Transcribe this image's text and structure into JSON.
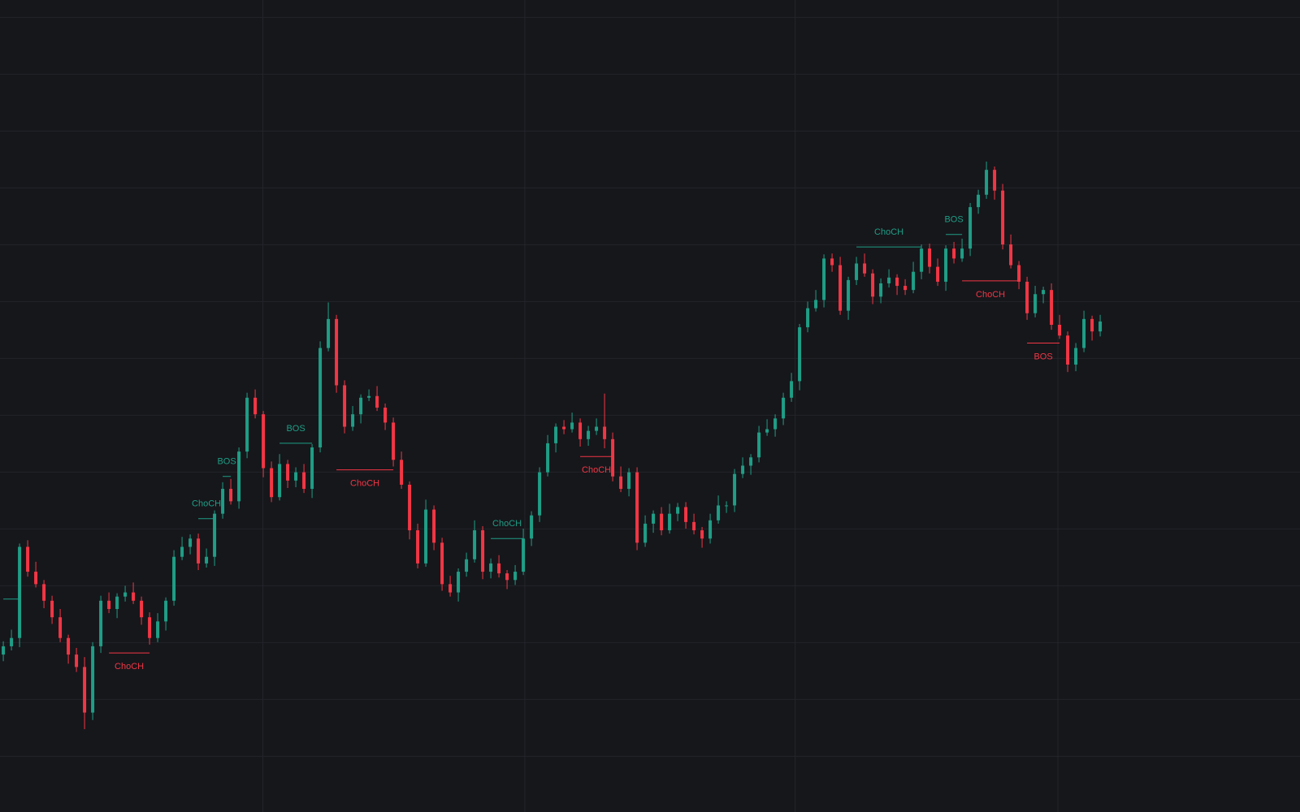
{
  "chart_data": {
    "type": "candlestick",
    "ylim": [
      0,
      980
    ],
    "grid": true,
    "up_color": "#1f9e86",
    "down_color": "#f23645",
    "open": [
      190,
      200,
      210,
      320,
      290,
      275,
      255,
      235,
      210,
      190,
      175,
      120,
      200,
      255,
      245,
      260,
      265,
      255,
      235,
      210,
      230,
      255,
      308,
      320,
      330,
      300,
      308,
      360,
      390,
      375,
      435,
      500,
      480,
      415,
      380,
      420,
      400,
      410,
      390,
      440,
      560,
      595,
      515,
      465,
      480,
      500,
      502,
      488,
      470,
      425,
      395,
      340,
      300,
      365,
      325,
      275,
      265,
      290,
      305,
      340,
      290,
      300,
      288,
      280,
      290,
      330,
      358,
      410,
      445,
      465,
      462,
      470,
      450,
      460,
      465,
      450,
      405,
      390,
      410,
      325,
      348,
      360,
      340,
      360,
      368,
      350,
      340,
      330,
      352,
      370,
      370,
      408,
      418,
      428,
      458,
      462,
      475,
      500,
      520,
      585,
      608,
      618,
      668,
      660,
      605,
      642,
      662,
      650,
      622,
      638,
      645,
      635,
      630,
      652,
      680,
      658,
      640,
      680,
      668,
      680,
      730,
      745,
      775,
      750,
      685,
      660,
      640,
      602,
      625,
      630,
      588,
      575,
      540,
      560,
      595,
      580
    ],
    "high": [
      206,
      220,
      324,
      328,
      302,
      280,
      261,
      245,
      214,
      198,
      187,
      205,
      261,
      265,
      264,
      273,
      277,
      260,
      241,
      240,
      259,
      316,
      332,
      335,
      336,
      318,
      364,
      398,
      402,
      440,
      506,
      510,
      484,
      423,
      432,
      425,
      416,
      420,
      444,
      568,
      615,
      600,
      521,
      490,
      504,
      510,
      514,
      493,
      476,
      435,
      399,
      348,
      377,
      370,
      331,
      285,
      294,
      313,
      352,
      345,
      306,
      310,
      292,
      298,
      342,
      363,
      416,
      455,
      469,
      473,
      482,
      475,
      466,
      475,
      505,
      458,
      417,
      415,
      416,
      358,
      364,
      368,
      372,
      373,
      374,
      360,
      344,
      360,
      382,
      375,
      414,
      428,
      432,
      466,
      474,
      480,
      506,
      530,
      589,
      616,
      630,
      673,
      674,
      670,
      646,
      670,
      674,
      655,
      644,
      655,
      649,
      643,
      664,
      685,
      686,
      668,
      684,
      688,
      692,
      735,
      751,
      785,
      779,
      758,
      697,
      665,
      646,
      635,
      634,
      638,
      600,
      580,
      566,
      605,
      599,
      600
    ],
    "low": [
      182,
      195,
      199,
      284,
      271,
      246,
      227,
      205,
      179,
      169,
      100,
      111,
      192,
      240,
      234,
      254,
      251,
      226,
      202,
      205,
      219,
      249,
      304,
      311,
      292,
      295,
      297,
      354,
      371,
      366,
      427,
      475,
      404,
      374,
      376,
      391,
      392,
      385,
      379,
      434,
      556,
      506,
      457,
      460,
      469,
      496,
      484,
      461,
      417,
      390,
      329,
      294,
      296,
      316,
      267,
      260,
      254,
      284,
      301,
      281,
      282,
      283,
      269,
      274,
      286,
      321,
      350,
      405,
      434,
      456,
      458,
      441,
      442,
      455,
      439,
      399,
      386,
      381,
      316,
      320,
      337,
      334,
      336,
      351,
      342,
      335,
      319,
      324,
      348,
      361,
      362,
      403,
      407,
      422,
      454,
      453,
      467,
      495,
      509,
      579,
      604,
      609,
      652,
      600,
      594,
      636,
      646,
      613,
      614,
      633,
      624,
      624,
      626,
      643,
      650,
      635,
      629,
      662,
      664,
      671,
      722,
      740,
      739,
      679,
      656,
      631,
      594,
      597,
      614,
      582,
      571,
      531,
      532,
      555,
      569,
      574
    ],
    "close": [
      200,
      210,
      320,
      290,
      275,
      255,
      235,
      210,
      190,
      175,
      120,
      200,
      255,
      245,
      260,
      265,
      255,
      235,
      210,
      230,
      255,
      308,
      320,
      330,
      300,
      308,
      360,
      390,
      375,
      435,
      500,
      480,
      415,
      380,
      420,
      400,
      410,
      390,
      440,
      560,
      595,
      515,
      465,
      480,
      500,
      502,
      488,
      470,
      425,
      395,
      340,
      300,
      365,
      325,
      275,
      265,
      290,
      305,
      340,
      290,
      300,
      288,
      280,
      290,
      330,
      358,
      410,
      445,
      465,
      462,
      470,
      450,
      460,
      465,
      450,
      405,
      390,
      410,
      325,
      348,
      360,
      340,
      360,
      368,
      350,
      340,
      330,
      352,
      370,
      370,
      408,
      418,
      428,
      458,
      462,
      475,
      500,
      520,
      585,
      608,
      618,
      668,
      660,
      605,
      642,
      662,
      650,
      622,
      638,
      645,
      635,
      630,
      652,
      680,
      658,
      640,
      680,
      668,
      680,
      730,
      745,
      775,
      750,
      685,
      660,
      640,
      602,
      625,
      630,
      588,
      575,
      540,
      560,
      595,
      580,
      592
    ],
    "annotations": [
      {
        "level": 257,
        "from": 0,
        "to": 2,
        "color": "#1f9e86"
      },
      {
        "text": "ChoCH",
        "level": 192,
        "from": 13,
        "to": 18,
        "color": "#f23645"
      },
      {
        "text": "ChoCH",
        "level": 354,
        "from": 24,
        "to": 26,
        "color": "#1f9e86"
      },
      {
        "text": "BOS",
        "level": 405,
        "from": 27,
        "to": 28,
        "color": "#1f9e86"
      },
      {
        "text": "BOS",
        "level": 445,
        "from": 34,
        "to": 38,
        "color": "#1f9e86"
      },
      {
        "text": "ChoCH",
        "level": 413,
        "from": 41,
        "to": 48,
        "color": "#f23645"
      },
      {
        "text": "ChoCH",
        "level": 330,
        "from": 60,
        "to": 64,
        "color": "#1f9e86"
      },
      {
        "text": "ChoCH",
        "level": 429,
        "from": 71,
        "to": 75,
        "color": "#f23645"
      },
      {
        "text": "ChoCH",
        "level": 682,
        "from": 105,
        "to": 113,
        "color": "#1f9e86"
      },
      {
        "text": "BOS",
        "level": 697,
        "from": 116,
        "to": 118,
        "color": "#1f9e86"
      },
      {
        "text": "ChoCH",
        "level": 641,
        "from": 118,
        "to": 125,
        "color": "#f23645"
      },
      {
        "text": "BOS",
        "level": 566,
        "from": 126,
        "to": 130,
        "color": "#f23645"
      }
    ]
  }
}
